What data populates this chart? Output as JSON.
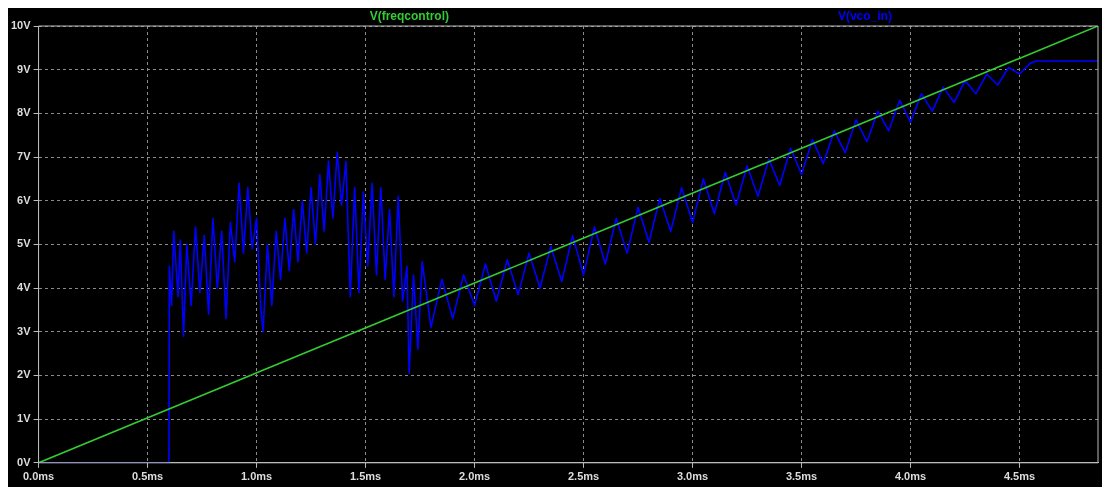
{
  "chart_data": {
    "type": "line",
    "legend": "top",
    "grid": true,
    "marker": "none",
    "line_style": "solid",
    "xlim": [
      0,
      4.86
    ],
    "ylim": [
      0,
      10
    ],
    "xticks": [
      {
        "value": 0,
        "label": "0.0ms"
      },
      {
        "value": 0.5,
        "label": "0.5ms"
      },
      {
        "value": 1,
        "label": "1.0ms"
      },
      {
        "value": 1.5,
        "label": "1.5ms"
      },
      {
        "value": 2,
        "label": "2.0ms"
      },
      {
        "value": 2.5,
        "label": "2.5ms"
      },
      {
        "value": 3,
        "label": "3.0ms"
      },
      {
        "value": 3.5,
        "label": "3.5ms"
      },
      {
        "value": 4,
        "label": "4.0ms"
      },
      {
        "value": 4.5,
        "label": "4.5ms"
      }
    ],
    "yticks": [
      {
        "value": 0,
        "label": "0V"
      },
      {
        "value": 1,
        "label": "1V"
      },
      {
        "value": 2,
        "label": "2V"
      },
      {
        "value": 3,
        "label": "3V"
      },
      {
        "value": 4,
        "label": "4V"
      },
      {
        "value": 5,
        "label": "5V"
      },
      {
        "value": 6,
        "label": "6V"
      },
      {
        "value": 7,
        "label": "7V"
      },
      {
        "value": 8,
        "label": "8V"
      },
      {
        "value": 9,
        "label": "9V"
      },
      {
        "value": 10,
        "label": "10V"
      }
    ],
    "series": [
      {
        "name": "V(freqcontrol)",
        "color": "#33cc33",
        "x": [
          0,
          4.86
        ],
        "values": [
          0,
          10
        ]
      },
      {
        "name": "V(vco_in)",
        "color": "#0000ff",
        "x": [
          0,
          0.598,
          0.6,
          0.61,
          0.62,
          0.64,
          0.65,
          0.665,
          0.68,
          0.7,
          0.72,
          0.74,
          0.76,
          0.78,
          0.8,
          0.82,
          0.84,
          0.86,
          0.88,
          0.9,
          0.92,
          0.94,
          0.96,
          0.98,
          1.0,
          1.02,
          1.03,
          1.05,
          1.07,
          1.09,
          1.11,
          1.13,
          1.15,
          1.17,
          1.19,
          1.21,
          1.23,
          1.25,
          1.27,
          1.29,
          1.31,
          1.33,
          1.35,
          1.37,
          1.39,
          1.41,
          1.43,
          1.45,
          1.47,
          1.49,
          1.51,
          1.53,
          1.55,
          1.57,
          1.59,
          1.61,
          1.63,
          1.65,
          1.67,
          1.69,
          1.7,
          1.72,
          1.74,
          1.76,
          1.8,
          1.85,
          1.9,
          1.95,
          2.0,
          2.05,
          2.1,
          2.15,
          2.2,
          2.25,
          2.3,
          2.35,
          2.4,
          2.45,
          2.5,
          2.55,
          2.6,
          2.65,
          2.7,
          2.75,
          2.8,
          2.85,
          2.9,
          2.95,
          3.0,
          3.05,
          3.1,
          3.15,
          3.2,
          3.25,
          3.3,
          3.35,
          3.4,
          3.45,
          3.5,
          3.55,
          3.6,
          3.65,
          3.7,
          3.75,
          3.8,
          3.85,
          3.9,
          3.95,
          4.0,
          4.05,
          4.1,
          4.15,
          4.2,
          4.25,
          4.3,
          4.35,
          4.4,
          4.45,
          4.5,
          4.55,
          4.58,
          4.86
        ],
        "values": [
          0,
          0,
          4.5,
          3.6,
          5.3,
          3.8,
          5.1,
          2.9,
          5.0,
          3.6,
          5.4,
          3.9,
          5.2,
          3.4,
          5.6,
          4.0,
          5.3,
          3.3,
          5.5,
          4.6,
          6.4,
          4.8,
          6.3,
          4.9,
          5.6,
          3.5,
          3.0,
          5.0,
          3.6,
          5.3,
          4.2,
          5.6,
          4.4,
          5.8,
          4.6,
          6.0,
          4.8,
          6.3,
          5.0,
          6.6,
          5.3,
          6.9,
          5.6,
          7.1,
          5.9,
          6.9,
          3.8,
          6.3,
          3.9,
          6.2,
          4.5,
          6.4,
          4.3,
          6.3,
          4.2,
          5.8,
          3.8,
          6.1,
          3.7,
          4.5,
          2.05,
          4.3,
          2.6,
          4.6,
          3.1,
          4.2,
          3.3,
          4.3,
          3.6,
          4.55,
          3.7,
          4.65,
          3.85,
          4.8,
          4.0,
          4.95,
          4.15,
          5.2,
          4.3,
          5.4,
          4.55,
          5.6,
          4.8,
          5.85,
          5.05,
          6.05,
          5.3,
          6.3,
          5.5,
          6.5,
          5.7,
          6.65,
          5.9,
          6.8,
          6.1,
          6.95,
          6.35,
          7.2,
          6.6,
          7.4,
          6.85,
          7.6,
          7.1,
          7.85,
          7.35,
          8.05,
          7.6,
          8.3,
          7.8,
          8.45,
          8.05,
          8.6,
          8.25,
          8.75,
          8.45,
          8.9,
          8.65,
          9.05,
          8.9,
          9.15,
          9.2,
          9.2
        ]
      }
    ]
  }
}
